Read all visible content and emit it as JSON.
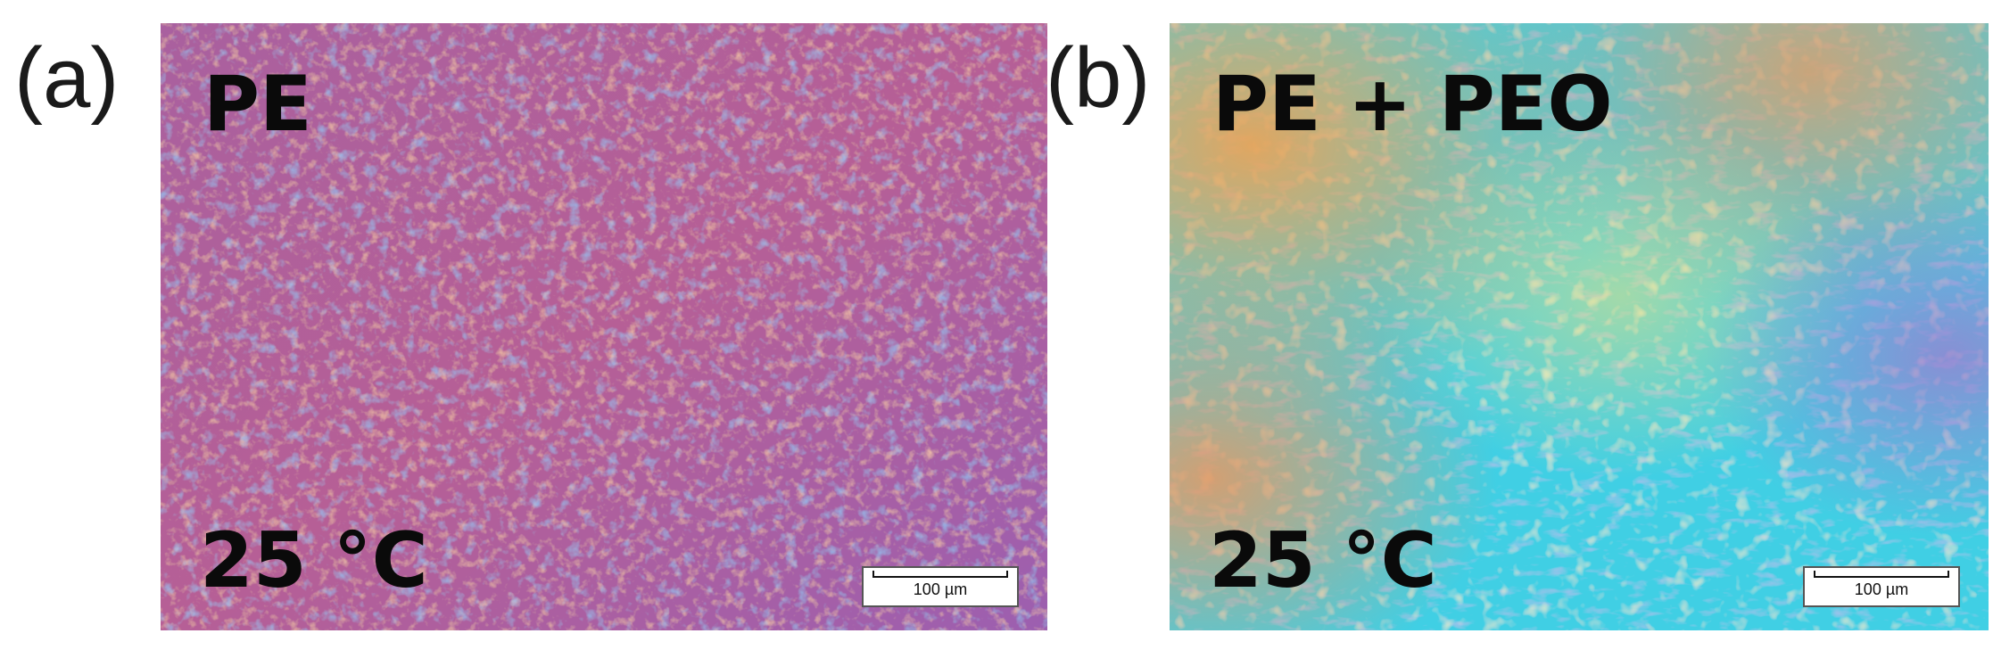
{
  "panels": [
    {
      "letter": "(a)",
      "material": "PE",
      "temperature": "25 °C",
      "scale_bar": "100 µm",
      "palette": [
        "#b35fa3",
        "#c96b8f",
        "#8a5fc4",
        "#e58a66",
        "#4d8fe0",
        "#d47bb3"
      ]
    },
    {
      "letter": "(b)",
      "material": "PE + PEO",
      "temperature": "25 °C",
      "scale_bar": "100 µm",
      "palette": [
        "#35d7e8",
        "#4fc7e6",
        "#f0d070",
        "#e69a5c",
        "#8e9ee0",
        "#b780c8",
        "#2fb8d6"
      ]
    }
  ]
}
